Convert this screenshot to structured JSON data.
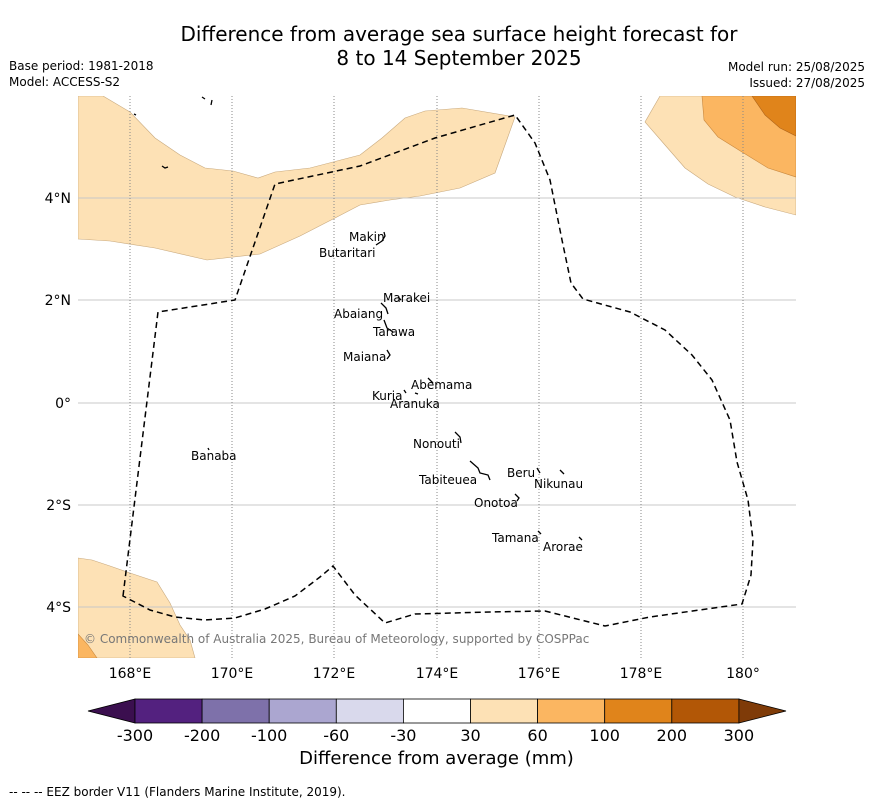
{
  "title": {
    "line1": "Difference from average sea surface height forecast for",
    "line2": "8 to 14 September 2025"
  },
  "meta_left": {
    "base_period": "Base period: 1981-2018",
    "model": "Model: ACCESS-S2"
  },
  "meta_right": {
    "model_run": "Model run: 25/08/2025",
    "issued": "Issued: 27/08/2025"
  },
  "map": {
    "x_ticks": [
      "168°E",
      "170°E",
      "172°E",
      "174°E",
      "176°E",
      "178°E",
      "180°"
    ],
    "y_ticks": [
      "4°N",
      "2°N",
      "0°",
      "2°S",
      "4°S"
    ],
    "islands": [
      "Makin",
      "Butaritari",
      "Marakei",
      "Abaiang",
      "Tarawa",
      "Maiana",
      "Abemama",
      "Kuria",
      "Aranuka",
      "Banaba",
      "Nonouti",
      "Beru",
      "Nikunau",
      "Tabiteuea",
      "Onotoa",
      "Tamana",
      "Arorae"
    ],
    "copyright": "© Commonwealth of Australia 2025, Bureau of Meteorology, supported by COSPPac",
    "colors": {
      "c30_60": "#fde1b5",
      "c60_100": "#fbb661",
      "c100_200": "#e0841b"
    }
  },
  "colorbar": {
    "tick_labels": [
      "-300",
      "-200",
      "-100",
      "-60",
      "-30",
      "30",
      "60",
      "100",
      "200",
      "300"
    ],
    "colors": [
      "#3b0f4f",
      "#53217f",
      "#7e71aa",
      "#aba6d0",
      "#d9d9ec",
      "#ffffff",
      "#fde1b5",
      "#fbb661",
      "#e0841b",
      "#b25706",
      "#7f3b08"
    ],
    "title": "Difference from average (mm)"
  },
  "footer": "--  --  -- EEZ border V11 (Flanders Marine Institute, 2019)."
}
